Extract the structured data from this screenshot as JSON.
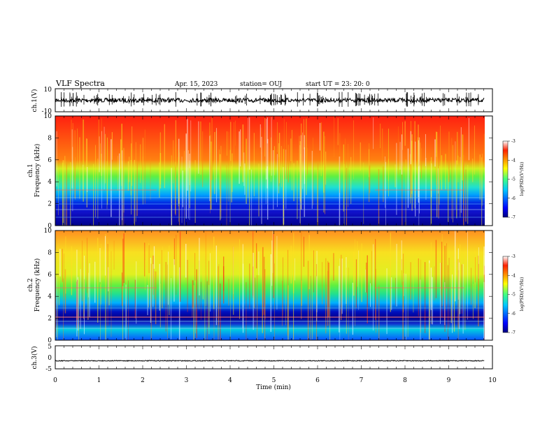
{
  "header": {
    "title": "VLF Spectra",
    "date": "Apr. 15, 2023",
    "station": "station= OUJ",
    "start": "start  UT  =   23: 20: 0"
  },
  "chart_data": [
    {
      "type": "line",
      "name": "ch.1 waveform",
      "ylabel": "ch.1(V)",
      "ylim": [
        -10,
        10
      ],
      "yticks": [
        "10",
        "-10"
      ],
      "xlim": [
        0,
        10
      ],
      "baseline": 0,
      "color": "#000000"
    },
    {
      "type": "heatmap",
      "name": "ch.1 spectrogram",
      "ylabel": "ch.1\nFrequency (kHz)",
      "ylim": [
        0,
        10
      ],
      "yticks": [
        "0",
        "2",
        "4",
        "6",
        "8",
        "10"
      ],
      "xlim": [
        0,
        10
      ],
      "colorbar": {
        "label": "log(PSD)(V²/Hz)",
        "range": [
          -7,
          -3
        ],
        "ticks": [
          "-3",
          "-4",
          "-5",
          "-6",
          "-7"
        ]
      }
    },
    {
      "type": "heatmap",
      "name": "ch.2 spectrogram",
      "ylabel": "ch.2\nFrequency (kHz)",
      "ylim": [
        0,
        10
      ],
      "yticks": [
        "0",
        "2",
        "4",
        "6",
        "8",
        "10"
      ],
      "xlim": [
        0,
        10
      ],
      "colorbar": {
        "label": "log(PSD)(V²/Hz)",
        "range": [
          -7,
          -3
        ],
        "ticks": [
          "-3",
          "-4",
          "-5",
          "-6",
          "-7"
        ]
      }
    },
    {
      "type": "line",
      "name": "ch.3 waveform",
      "ylabel": "ch.3(V)",
      "ylim": [
        -5,
        5
      ],
      "yticks": [
        "5",
        "0",
        "-5"
      ],
      "xlim": [
        0,
        10
      ],
      "baseline": -1.5,
      "color": "#000000"
    }
  ],
  "xaxis": {
    "label": "Time (min)",
    "ticks": [
      "0",
      "1",
      "2",
      "3",
      "4",
      "5",
      "6",
      "7",
      "8",
      "9",
      "10"
    ],
    "xlim": [
      0,
      10
    ]
  },
  "colors": {
    "high": "#ff1e00",
    "mid": "#ffee00",
    "low": "#00b4ff",
    "floor": "#00008b"
  }
}
